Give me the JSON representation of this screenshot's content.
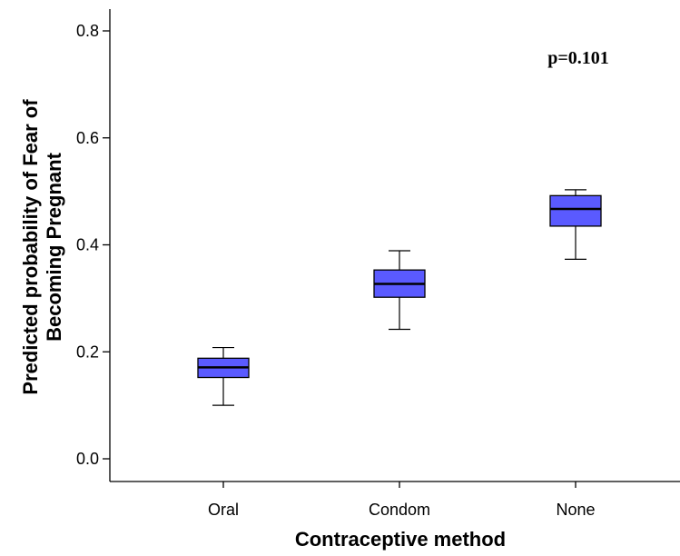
{
  "chart_data": {
    "type": "box",
    "title": "",
    "xlabel": "Contraceptive method",
    "ylabel_lines": [
      "Predicted probability of Fear of",
      "Becoming Pregnant"
    ],
    "ylim": [
      0.0,
      0.8
    ],
    "yticks": [
      "0.0",
      "0.2",
      "0.4",
      "0.6",
      "0.8"
    ],
    "ytick_values": [
      0.0,
      0.2,
      0.4,
      0.6,
      0.8
    ],
    "categories": [
      "Oral",
      "Condom",
      "None"
    ],
    "boxes": [
      {
        "category": "Oral",
        "min": 0.1,
        "q1": 0.152,
        "median": 0.171,
        "q3": 0.188,
        "max": 0.208
      },
      {
        "category": "Condom",
        "min": 0.242,
        "q1": 0.302,
        "median": 0.327,
        "q3": 0.353,
        "max": 0.389
      },
      {
        "category": "None",
        "min": 0.373,
        "q1": 0.435,
        "median": 0.467,
        "q3": 0.492,
        "max": 0.503
      }
    ],
    "box_color": "#5a5aff",
    "annotation": "p=0.101",
    "grid": false
  }
}
